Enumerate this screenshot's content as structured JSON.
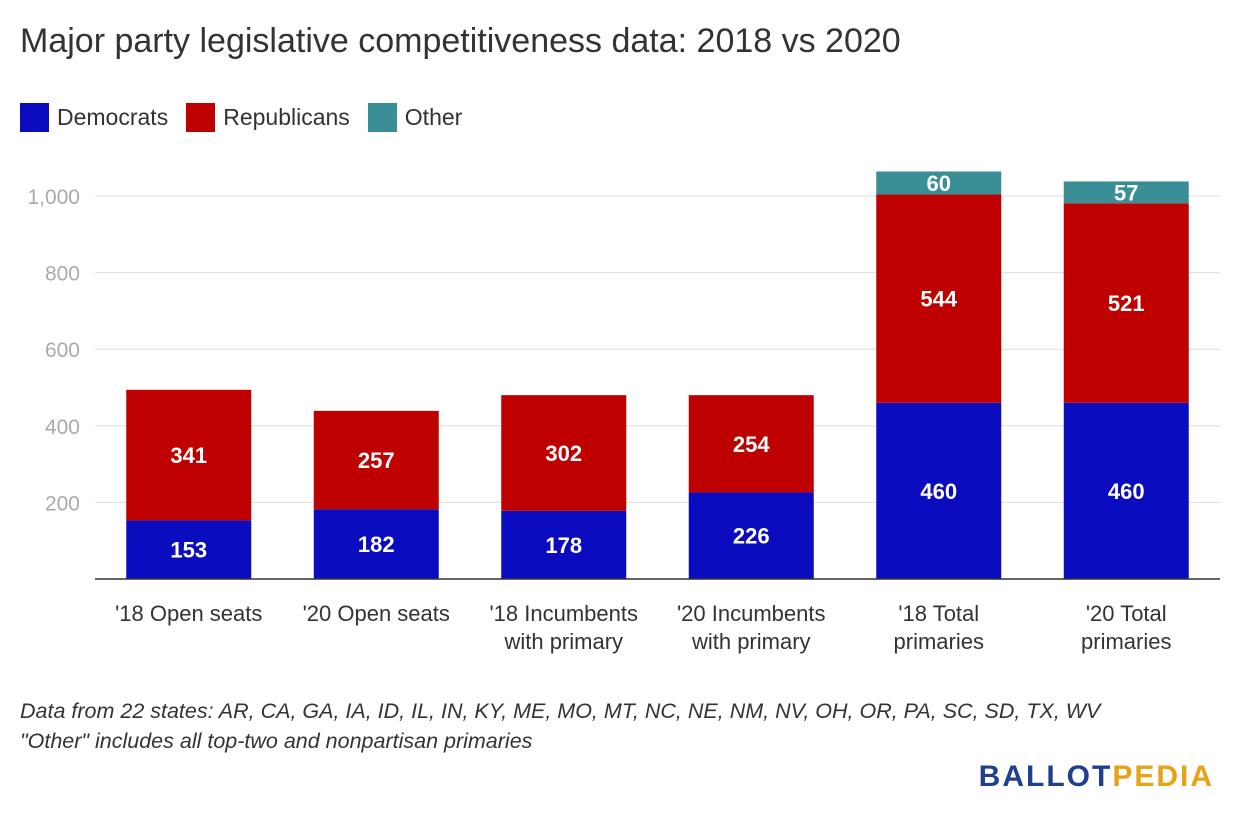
{
  "title": "Major party legislative competitiveness data: 2018 vs 2020",
  "legend": [
    {
      "label": "Democrats",
      "color": "#0b0bbf"
    },
    {
      "label": "Republicans",
      "color": "#bf0000"
    },
    {
      "label": "Other",
      "color": "#3a8e96"
    }
  ],
  "footnote": {
    "line1": "Data from 22 states: AR, CA, GA, IA, ID, IL, IN, KY, ME, MO, MT, NC, NE, NM, NV, OH, OR, PA, SC, SD, TX, WV",
    "line2": "\"Other\" includes all top-two and nonpartisan primaries"
  },
  "logo": {
    "part1": "BALLOT",
    "part2": "PEDIA"
  },
  "chart_data": {
    "type": "bar",
    "stacked": true,
    "categories": [
      [
        "'18 Open seats"
      ],
      [
        "'20 Open seats"
      ],
      [
        "'18 Incumbents",
        "with primary"
      ],
      [
        "'20 Incumbents",
        "with primary"
      ],
      [
        "'18 Total",
        "primaries"
      ],
      [
        "'20 Total",
        "primaries"
      ]
    ],
    "series": [
      {
        "name": "Democrats",
        "color": "#0b0bbf",
        "values": [
          153,
          182,
          178,
          226,
          460,
          460
        ]
      },
      {
        "name": "Republicans",
        "color": "#bf0000",
        "values": [
          341,
          257,
          302,
          254,
          544,
          521
        ]
      },
      {
        "name": "Other",
        "color": "#3a8e96",
        "values": [
          0,
          0,
          0,
          0,
          60,
          57
        ]
      }
    ],
    "yticks": [
      "200",
      "400",
      "600",
      "800",
      "1,000"
    ],
    "ylim": [
      0,
      1100
    ],
    "grid": true,
    "legend_position": "top-left"
  }
}
